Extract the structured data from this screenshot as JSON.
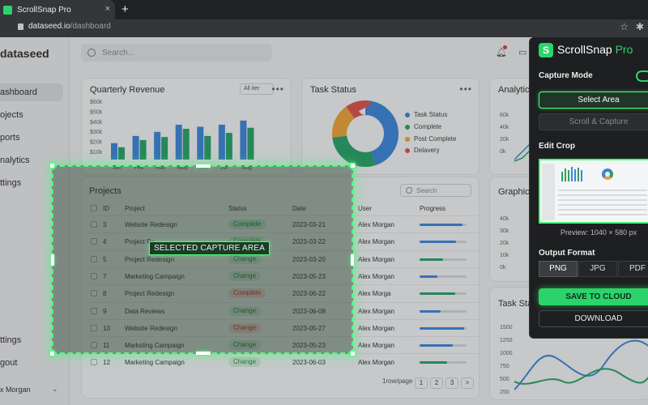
{
  "browser": {
    "tab_title": "ScrollSnap Pro",
    "new_tab": "+",
    "close": "×",
    "domain": "dataseed.io",
    "path": "/dashboard"
  },
  "app": {
    "brand": "dataseed",
    "search_placeholder": "Search...",
    "sidebar": [
      {
        "label": "ashboard",
        "active": true
      },
      {
        "label": "ojects"
      },
      {
        "label": "ports"
      },
      {
        "label": "nalytics"
      },
      {
        "label": "ttings"
      },
      {
        "label": "ttings"
      },
      {
        "label": "gout"
      }
    ],
    "user": "x Morgan"
  },
  "revenue": {
    "title": "Quarterly Revenue",
    "filter": "All iter",
    "menu": "•••",
    "yticks": [
      "$60k",
      "$50k",
      "$40k",
      "$30k",
      "$20k",
      "$10k"
    ],
    "months": [
      "Jan",
      "Feb",
      "Mar",
      "May",
      "Jun",
      "Jul",
      "Aug"
    ],
    "colors": {
      "blue": "#3d85d6",
      "green": "#2aa06a"
    }
  },
  "chart_data": {
    "type": "bar",
    "title": "Quarterly Revenue",
    "categories": [
      "Jan",
      "Feb",
      "Mar",
      "May",
      "Jun",
      "Jul",
      "Aug"
    ],
    "ylim": [
      0,
      60
    ],
    "series": [
      {
        "values": [
          16,
          23,
          27,
          34,
          32,
          34,
          38
        ]
      },
      {
        "values": [
          12,
          19,
          22,
          30,
          23,
          26,
          31
        ]
      }
    ]
  },
  "task_status": {
    "title": "Task Status",
    "menu": "•••",
    "legend": [
      {
        "label": "Task Status",
        "color": "#3d85d6"
      },
      {
        "label": "Complete",
        "color": "#2aa06a"
      },
      {
        "label": "Post Complete",
        "color": "#e8a23a"
      },
      {
        "label": "Delavery",
        "color": "#d9534f"
      }
    ],
    "slices": [
      {
        "value": 45,
        "color": "#3d85d6"
      },
      {
        "value": 28,
        "color": "#2aa06a"
      },
      {
        "value": 17,
        "color": "#e8a23a"
      },
      {
        "value": 10,
        "color": "#d9534f"
      }
    ]
  },
  "analytics": {
    "title": "Analytic",
    "yticks": [
      "60k",
      "40k",
      "20k",
      "0k"
    ]
  },
  "graphic": {
    "title": "Graphic",
    "yticks": [
      "40k",
      "30k",
      "20k",
      "10k",
      "0k"
    ]
  },
  "task_stats": {
    "title": "Task Sta",
    "yticks": [
      "1500",
      "1250",
      "1000",
      "750",
      "500",
      "250"
    ]
  },
  "projects": {
    "title": "Projects",
    "search_placeholder": "Search",
    "columns": [
      "ID",
      "Project",
      "Status",
      "Date",
      "User",
      "Progress"
    ],
    "rows": [
      {
        "id": "3",
        "project": "Website Redesign",
        "status": "Complete",
        "kind": "complete",
        "date": "2023-03-21",
        "user": "Alex Morgan",
        "progress": 0.92,
        "color": "#3d85d6"
      },
      {
        "id": "4",
        "project": "Project Re",
        "status": "Complete",
        "kind": "complete",
        "date": "2023-03-22",
        "user": "Alex Morgan",
        "progress": 0.78,
        "color": "#3d85d6"
      },
      {
        "id": "5",
        "project": "Project Redesign",
        "status": "Change",
        "kind": "change",
        "date": "2023-03-20",
        "user": "Alex Morgan",
        "progress": 0.5,
        "color": "#2aa06a"
      },
      {
        "id": "7",
        "project": "Marketing Campaign",
        "status": "Change",
        "kind": "change",
        "date": "2023-05-23",
        "user": "Alex Morgan",
        "progress": 0.38,
        "color": "#3d85d6"
      },
      {
        "id": "8",
        "project": "Project Redesign",
        "status": "Complete",
        "kind": "change-r",
        "date": "2023-06-22",
        "user": "Alex Morga",
        "progress": 0.76,
        "color": "#2aa06a"
      },
      {
        "id": "9",
        "project": "Data Reviews",
        "status": "Change",
        "kind": "change",
        "date": "2023-06-08",
        "user": "Alex Morgan",
        "progress": 0.44,
        "color": "#3d85d6"
      },
      {
        "id": "10",
        "project": "Website Redesign",
        "status": "Change",
        "kind": "change-r",
        "date": "2023-05-27",
        "user": "Alex Morgan",
        "progress": 0.95,
        "color": "#3d85d6"
      },
      {
        "id": "11",
        "project": "Marksting Campaign",
        "status": "Change",
        "kind": "change",
        "date": "2023-05-23",
        "user": "Alex Morgan",
        "progress": 0.7,
        "color": "#3d85d6"
      },
      {
        "id": "12",
        "project": "Marketing Campaign",
        "status": "Change",
        "kind": "change",
        "date": "2023-06-03",
        "user": "Alex Morgan",
        "progress": 0.58,
        "color": "#2aa06a"
      }
    ],
    "pager_label": "1row/page",
    "pages": [
      "1",
      "2",
      "3",
      ">"
    ]
  },
  "capture": {
    "label": "SELECTED CAPTURE AREA"
  },
  "panel": {
    "logo": "S",
    "title_a": "ScrollSnap",
    "title_b": " Pro",
    "capture_mode": "Capture Mode",
    "select_area": "Select Area",
    "scroll_capture": "Scroll & Capture",
    "edit_crop": "Edit Crop",
    "preview": "Preview: 1040 × 580 px",
    "output_format": "Output Format",
    "formats": [
      "PNG",
      "JPG",
      "PDF"
    ],
    "save": "SAVE TO CLOUD",
    "download": "DOWNLOAD"
  }
}
